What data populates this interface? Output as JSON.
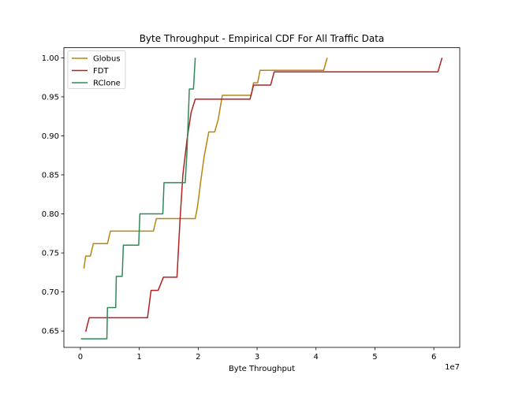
{
  "chart_data": {
    "type": "line",
    "title": "Byte Throughput - Empirical CDF For All Traffic Data",
    "xlabel": "Byte Throughput",
    "ylabel": "",
    "x_offset_label": "1e7",
    "xlim": [
      -2800000,
      64400000
    ],
    "ylim": [
      0.629,
      1.013
    ],
    "xticks": [
      0,
      10000000,
      20000000,
      30000000,
      40000000,
      50000000,
      60000000
    ],
    "xtick_labels": [
      "0",
      "1",
      "2",
      "3",
      "4",
      "5",
      "6"
    ],
    "yticks": [
      0.65,
      0.7,
      0.75,
      0.8,
      0.85,
      0.9,
      0.95,
      1.0
    ],
    "ytick_labels": [
      "0.65",
      "0.70",
      "0.75",
      "0.80",
      "0.85",
      "0.90",
      "0.95",
      "1.00"
    ],
    "grid": false,
    "legend_position": "top-left",
    "series": [
      {
        "name": "Globus",
        "color": "#b8860b",
        "points": [
          [
            600000,
            0.73
          ],
          [
            900000,
            0.746
          ],
          [
            1700000,
            0.746
          ],
          [
            2200000,
            0.762
          ],
          [
            4600000,
            0.762
          ],
          [
            5100000,
            0.778
          ],
          [
            12400000,
            0.778
          ],
          [
            12900000,
            0.794
          ],
          [
            19500000,
            0.794
          ],
          [
            19900000,
            0.81
          ],
          [
            20400000,
            0.84
          ],
          [
            21000000,
            0.873
          ],
          [
            21800000,
            0.905
          ],
          [
            22800000,
            0.905
          ],
          [
            23400000,
            0.921
          ],
          [
            24100000,
            0.952
          ],
          [
            29000000,
            0.952
          ],
          [
            29400000,
            0.968
          ],
          [
            30100000,
            0.968
          ],
          [
            30500000,
            0.984
          ],
          [
            41300000,
            0.984
          ],
          [
            41900000,
            1.0
          ]
        ]
      },
      {
        "name": "FDT",
        "color": "#b22222",
        "points": [
          [
            900000,
            0.649
          ],
          [
            1500000,
            0.667
          ],
          [
            11400000,
            0.667
          ],
          [
            12000000,
            0.702
          ],
          [
            13200000,
            0.702
          ],
          [
            14100000,
            0.719
          ],
          [
            16400000,
            0.719
          ],
          [
            16900000,
            0.79
          ],
          [
            17400000,
            0.85
          ],
          [
            18100000,
            0.895
          ],
          [
            18800000,
            0.93
          ],
          [
            19500000,
            0.947
          ],
          [
            28800000,
            0.947
          ],
          [
            29400000,
            0.965
          ],
          [
            32300000,
            0.965
          ],
          [
            32900000,
            0.982
          ],
          [
            60700000,
            0.982
          ],
          [
            61400000,
            1.0
          ]
        ]
      },
      {
        "name": "RClone",
        "color": "#2e8b57",
        "points": [
          [
            100000,
            0.64
          ],
          [
            4500000,
            0.64
          ],
          [
            4600000,
            0.68
          ],
          [
            6000000,
            0.68
          ],
          [
            6100000,
            0.72
          ],
          [
            7100000,
            0.72
          ],
          [
            7300000,
            0.76
          ],
          [
            9900000,
            0.76
          ],
          [
            10100000,
            0.8
          ],
          [
            14000000,
            0.8
          ],
          [
            14200000,
            0.84
          ],
          [
            17800000,
            0.84
          ],
          [
            18100000,
            0.88
          ],
          [
            18500000,
            0.96
          ],
          [
            19200000,
            0.96
          ],
          [
            19500000,
            1.0
          ]
        ]
      }
    ]
  }
}
